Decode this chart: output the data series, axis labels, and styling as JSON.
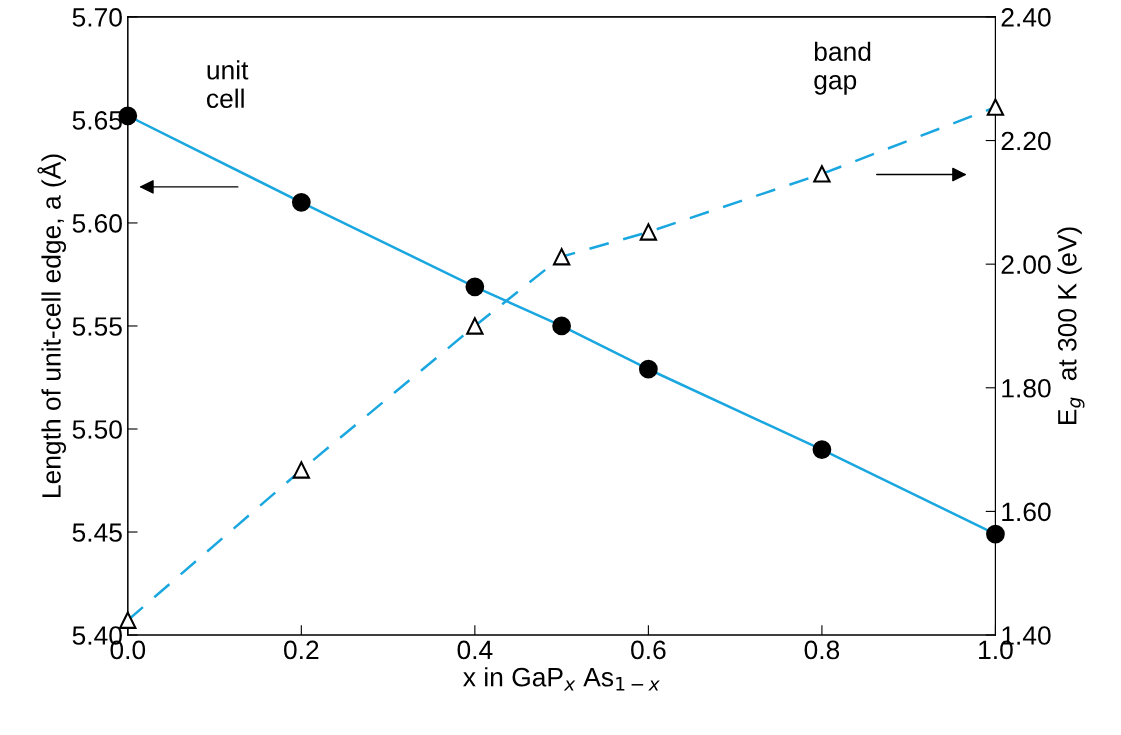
{
  "chart_data": {
    "type": "line",
    "xlabel": "x in GaP$_{x}$ As$_{1−x}$",
    "ylabel": "Length of unit-cell edge, a (Å)",
    "y2label": "E$_{g}$  at 300 K (eV)",
    "x": [
      0.0,
      0.2,
      0.4,
      0.5,
      0.6,
      0.8,
      1.0
    ],
    "series": [
      {
        "color": "#1aa7e0",
        "values": [
          5.652,
          5.61,
          5.569,
          5.55,
          5.529,
          5.49,
          5.449
        ],
        "marker": "circle",
        "line_style": "solid"
      },
      {
        "color": "#1aa7e0",
        "values": [
          1.424,
          1.667,
          1.9,
          2.012,
          2.052,
          2.146,
          2.254
        ],
        "marker": "triangle",
        "line_style": "dashed",
        "axis": "y2"
      }
    ],
    "annotations": [
      "unit\ncell",
      "band\ngap"
    ],
    "xlim": [
      0.0,
      1.0
    ],
    "xticks": [
      {
        "value": 0.0,
        "label": "0.0"
      },
      {
        "value": 0.2,
        "label": "0.2"
      },
      {
        "value": 0.4,
        "label": "0.4"
      },
      {
        "value": 0.6,
        "label": "0.6"
      },
      {
        "value": 0.8,
        "label": "0.8"
      },
      {
        "value": 1.0,
        "label": "1.0"
      }
    ],
    "ylim": [
      5.4,
      5.7
    ],
    "yticks": [
      {
        "value": 5.4,
        "label": "5.40"
      },
      {
        "value": 5.45,
        "label": "5.45"
      },
      {
        "value": 5.5,
        "label": "5.50"
      },
      {
        "value": 5.55,
        "label": "5.55"
      },
      {
        "value": 5.6,
        "label": "5.60"
      },
      {
        "value": 5.65,
        "label": "5.65"
      },
      {
        "value": 5.7,
        "label": "5.70"
      }
    ],
    "y2lim": [
      1.4,
      2.4
    ],
    "y2ticks": [
      {
        "value": 1.4,
        "label": "1.40"
      },
      {
        "value": 1.6,
        "label": "1.60"
      },
      {
        "value": 1.8,
        "label": "1.80"
      },
      {
        "value": 2.0,
        "label": "2.00"
      },
      {
        "value": 2.2,
        "label": "2.20"
      },
      {
        "value": 2.4,
        "label": "2.40"
      }
    ],
    "grid": false,
    "legend": false
  }
}
